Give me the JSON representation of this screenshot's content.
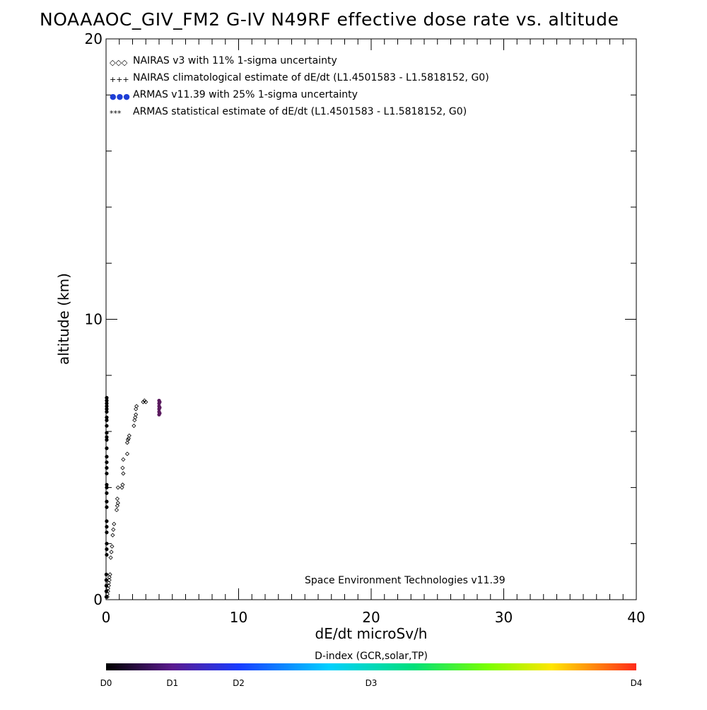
{
  "chart_data": {
    "type": "scatter",
    "title": "NOAAAOC_GIV_FM2 G-IV   N49RF  effective dose rate vs. altitude",
    "xlabel": "dE/dt microSv/h",
    "ylabel": "altitude (km)",
    "xlim": [
      0,
      40
    ],
    "ylim": [
      0,
      20
    ],
    "x_ticks": [
      "0",
      "10",
      "20",
      "30",
      "40"
    ],
    "y_ticks": [
      "0",
      "10",
      "20"
    ],
    "x_minor_step": 1,
    "y_minor_step": 2,
    "grid": false,
    "legend_position": "top-left",
    "legend": [
      {
        "marker": "◇◇◇",
        "text": "NAIRAS v3 with 11% 1-sigma uncertainty"
      },
      {
        "marker": "+++",
        "text": "NAIRAS climatological estimate of dE/dt (L1.4501583 - L1.5818152, G0)"
      },
      {
        "marker": "●●●",
        "text": "ARMAS v11.39 with 25% 1-sigma uncertainty"
      },
      {
        "marker": "***",
        "text": "ARMAS statistical estimate of dE/dt (L1.4501583 - L1.5818152, G0)"
      }
    ],
    "annotation": "Space Environment Technologies v11.39",
    "colorbar": {
      "title": "D-index (GCR,solar,TP)",
      "labels": [
        {
          "text": "D0",
          "pos": 0.0
        },
        {
          "text": "D1",
          "pos": 0.125
        },
        {
          "text": "D2",
          "pos": 0.25
        },
        {
          "text": "D3",
          "pos": 0.5
        },
        {
          "text": "D4",
          "pos": 1.0
        }
      ]
    },
    "series": [
      {
        "marker": "diamond",
        "color": "#000000",
        "points": [
          [
            0.1,
            0.1
          ],
          [
            0.1,
            0.2
          ],
          [
            0.15,
            0.3
          ],
          [
            0.15,
            0.4
          ],
          [
            0.2,
            0.5
          ],
          [
            0.2,
            0.6
          ],
          [
            0.25,
            0.7
          ],
          [
            0.25,
            0.8
          ],
          [
            0.3,
            0.9
          ],
          [
            0.35,
            1.5
          ],
          [
            0.4,
            1.7
          ],
          [
            0.45,
            1.9
          ],
          [
            0.5,
            2.3
          ],
          [
            0.55,
            2.5
          ],
          [
            0.6,
            2.7
          ],
          [
            0.8,
            3.2
          ],
          [
            0.85,
            3.35
          ],
          [
            0.9,
            3.45
          ],
          [
            0.85,
            3.6
          ],
          [
            0.9,
            4.0
          ],
          [
            1.2,
            4.0
          ],
          [
            1.25,
            4.1
          ],
          [
            1.3,
            4.5
          ],
          [
            1.25,
            4.7
          ],
          [
            1.3,
            5.0
          ],
          [
            1.6,
            5.2
          ],
          [
            1.6,
            5.6
          ],
          [
            1.65,
            5.7
          ],
          [
            1.7,
            5.75
          ],
          [
            1.75,
            5.85
          ],
          [
            2.1,
            6.2
          ],
          [
            2.15,
            6.4
          ],
          [
            2.2,
            6.5
          ],
          [
            2.25,
            6.6
          ],
          [
            2.25,
            6.8
          ],
          [
            2.3,
            6.9
          ],
          [
            2.8,
            7.05
          ],
          [
            2.9,
            7.1
          ],
          [
            3.0,
            7.05
          ]
        ]
      },
      {
        "marker": "dot",
        "color": "#5a1a5e",
        "points": [
          [
            4.0,
            6.6
          ],
          [
            4.0,
            6.7
          ],
          [
            4.0,
            6.8
          ],
          [
            4.0,
            6.9
          ],
          [
            4.0,
            7.0
          ],
          [
            4.0,
            7.1
          ],
          [
            4.05,
            6.65
          ],
          [
            4.05,
            6.85
          ],
          [
            4.05,
            7.05
          ]
        ]
      },
      {
        "marker": "dot",
        "color": "#000000",
        "points": [
          [
            0.02,
            0.1
          ],
          [
            0.02,
            0.3
          ],
          [
            0.02,
            0.5
          ],
          [
            0.02,
            0.7
          ],
          [
            0.02,
            0.9
          ],
          [
            0.05,
            1.6
          ],
          [
            0.05,
            1.8
          ],
          [
            0.05,
            2.0
          ],
          [
            0.05,
            2.4
          ],
          [
            0.05,
            2.6
          ],
          [
            0.05,
            2.8
          ],
          [
            0.05,
            3.3
          ],
          [
            0.05,
            3.5
          ],
          [
            0.05,
            3.8
          ],
          [
            0.05,
            4.0
          ],
          [
            0.05,
            4.1
          ],
          [
            0.05,
            4.5
          ],
          [
            0.05,
            4.7
          ],
          [
            0.05,
            4.9
          ],
          [
            0.05,
            5.1
          ],
          [
            0.05,
            5.4
          ],
          [
            0.05,
            5.7
          ],
          [
            0.05,
            5.8
          ],
          [
            0.05,
            5.95
          ],
          [
            0.05,
            6.2
          ],
          [
            0.05,
            6.4
          ],
          [
            0.05,
            6.5
          ],
          [
            0.05,
            6.7
          ],
          [
            0.05,
            6.8
          ],
          [
            0.05,
            6.9
          ],
          [
            0.05,
            7.0
          ],
          [
            0.05,
            7.1
          ],
          [
            0.05,
            7.2
          ]
        ]
      }
    ]
  }
}
